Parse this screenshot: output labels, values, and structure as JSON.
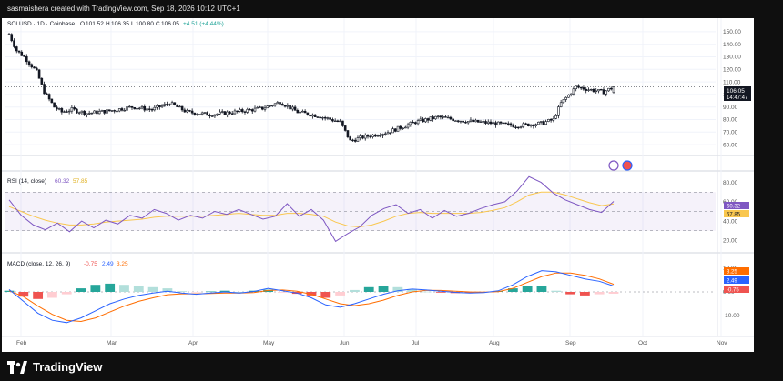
{
  "header": {
    "text": "sasmaishera created with TradingView.com, Sep 18, 2026 10:12 UTC+1"
  },
  "legend": {
    "symbol": "SOLUSD · 1D · Coinbase",
    "o_label": "O",
    "o_value": "101.52",
    "h_label": "H",
    "h_value": "106.35",
    "l_label": "L",
    "l_value": "100.80",
    "c_label": "C",
    "c_value": "106.05",
    "change": "+4.51 (+4.44%)"
  },
  "rsi_legend": {
    "label": "RSI (14, close)",
    "value1": "60.32",
    "value2": "57.85"
  },
  "macd_legend": {
    "label": "MACD (close, 12, 26, 9)",
    "value1": "-0.75",
    "value2": "2.49",
    "value3": "3.25"
  },
  "price_badge": {
    "value": "106.05",
    "countdown": "14:47:47"
  },
  "rsi_badges": {
    "rsi": "60.32",
    "ma": "57.85"
  },
  "macd_badges": {
    "signal": "3.25",
    "macd": "2.49",
    "hist": "-0.75"
  },
  "footer": {
    "brand": "TradingView"
  },
  "colors": {
    "up": "#26a69a",
    "down": "#ef5350",
    "candle": "#131722",
    "rsi": "#7e57c2",
    "rsi_ma": "#f9c74f",
    "macd": "#2962ff",
    "signal": "#ff6d00"
  },
  "chart_data": [
    {
      "type": "candlestick",
      "title": "SOLUSD · 1D · Coinbase",
      "x_tick_labels": [
        "Feb",
        "Mar",
        "Apr",
        "May",
        "Jun",
        "Jul",
        "Aug",
        "Sep",
        "Oct",
        "Nov"
      ],
      "y_tick_labels": [
        "60.00",
        "70.00",
        "80.00",
        "90.00",
        "100.00",
        "110.00",
        "120.00",
        "130.00",
        "140.00",
        "150.00"
      ],
      "ylim": [
        55,
        155
      ],
      "close_keypoints": [
        {
          "x": "Jan 20",
          "y": 148
        },
        {
          "x": "Jan 23",
          "y": 135
        },
        {
          "x": "Jan 26",
          "y": 130
        },
        {
          "x": "Jan 31",
          "y": 118
        },
        {
          "x": "Feb 3",
          "y": 102
        },
        {
          "x": "Feb 7",
          "y": 90
        },
        {
          "x": "Feb 10",
          "y": 86
        },
        {
          "x": "Feb 14",
          "y": 88
        },
        {
          "x": "Feb 20",
          "y": 85
        },
        {
          "x": "Mar 1",
          "y": 87
        },
        {
          "x": "Mar 10",
          "y": 90
        },
        {
          "x": "Mar 18",
          "y": 88
        },
        {
          "x": "Mar 25",
          "y": 93
        },
        {
          "x": "Apr 1",
          "y": 86
        },
        {
          "x": "Apr 10",
          "y": 84
        },
        {
          "x": "Apr 20",
          "y": 86
        },
        {
          "x": "May 1",
          "y": 89
        },
        {
          "x": "May 8",
          "y": 94
        },
        {
          "x": "May 15",
          "y": 86
        },
        {
          "x": "May 23",
          "y": 83
        },
        {
          "x": "Jun 1",
          "y": 78
        },
        {
          "x": "Jun 5",
          "y": 63
        },
        {
          "x": "Jun 10",
          "y": 66
        },
        {
          "x": "Jun 20",
          "y": 70
        },
        {
          "x": "Jul 1",
          "y": 78
        },
        {
          "x": "Jul 10",
          "y": 82
        },
        {
          "x": "Jul 20",
          "y": 79
        },
        {
          "x": "Aug 1",
          "y": 77
        },
        {
          "x": "Aug 10",
          "y": 75
        },
        {
          "x": "Aug 20",
          "y": 77
        },
        {
          "x": "Aug 25",
          "y": 80
        },
        {
          "x": "Aug 28",
          "y": 93
        },
        {
          "x": "Sep 3",
          "y": 106
        },
        {
          "x": "Sep 8",
          "y": 104
        },
        {
          "x": "Sep 14",
          "y": 102
        },
        {
          "x": "Sep 18",
          "y": 106.05
        }
      ],
      "last": {
        "open": 101.52,
        "high": 106.35,
        "low": 100.8,
        "close": 106.05
      }
    },
    {
      "type": "line",
      "title": "RSI (14, close)",
      "y_tick_labels": [
        "20.00",
        "40.00",
        "60.00",
        "80.00"
      ],
      "ylim": [
        10,
        90
      ],
      "bands": {
        "upper": 70,
        "lower": 30,
        "middle": 50
      },
      "series": [
        {
          "name": "RSI",
          "values": [
            62,
            46,
            36,
            31,
            38,
            29,
            40,
            33,
            41,
            37,
            46,
            43,
            52,
            48,
            41,
            46,
            43,
            50,
            47,
            52,
            47,
            42,
            45,
            58,
            45,
            52,
            41,
            19,
            27,
            34,
            46,
            53,
            57,
            48,
            52,
            43,
            51,
            45,
            48,
            53,
            57,
            60,
            71,
            86,
            80,
            69,
            62,
            57,
            52,
            49,
            60.32
          ]
        },
        {
          "name": "MA",
          "values": [
            55,
            50,
            45,
            41,
            38,
            36,
            36,
            37,
            39,
            40,
            41,
            42,
            44,
            45,
            45,
            45,
            45,
            46,
            47,
            48,
            47,
            46,
            46,
            48,
            48,
            47,
            45,
            39,
            35,
            34,
            36,
            40,
            45,
            48,
            49,
            48,
            48,
            48,
            48,
            49,
            51,
            54,
            60,
            67,
            70,
            70,
            67,
            63,
            59,
            56,
            57.85
          ]
        }
      ]
    },
    {
      "type": "line",
      "title": "MACD (close, 12, 26, 9)",
      "y_tick_labels": [
        "-10.00",
        "0.00",
        "10.00"
      ],
      "ylim": [
        -15,
        15
      ],
      "series": [
        {
          "name": "MACD",
          "values": [
            1,
            -4,
            -9,
            -12,
            -13,
            -11,
            -8,
            -5,
            -3,
            -1.5,
            -0.5,
            0.3,
            -0.5,
            -1,
            -0.5,
            0,
            -0.5,
            0.2,
            1.5,
            0.5,
            -0.5,
            -2.5,
            -5.5,
            -6.5,
            -5,
            -3,
            -1,
            0.5,
            1.2,
            0.8,
            0.3,
            -0.2,
            -0.5,
            -0.3,
            0.5,
            3,
            6.5,
            9,
            8.5,
            7,
            5.5,
            4.5,
            2.49
          ]
        },
        {
          "name": "Signal",
          "values": [
            0.5,
            -2,
            -6,
            -9.5,
            -12,
            -12.5,
            -11,
            -8.5,
            -6,
            -4,
            -2.5,
            -1.2,
            -0.8,
            -0.8,
            -0.7,
            -0.5,
            -0.5,
            -0.3,
            0.6,
            0.8,
            0.3,
            -1,
            -3,
            -5,
            -5.8,
            -5,
            -3.5,
            -1.5,
            0,
            0.7,
            0.6,
            0.3,
            0,
            -0.1,
            0.1,
            1.5,
            4,
            6.5,
            8,
            8,
            7,
            5.5,
            3.25
          ]
        },
        {
          "name": "Histogram",
          "values": [
            0.5,
            -2,
            -3,
            -2.5,
            -1,
            1.5,
            3,
            3.5,
            3,
            2.5,
            2,
            1.5,
            0.3,
            -0.2,
            0.2,
            0.5,
            0,
            0.5,
            0.9,
            -0.3,
            -0.8,
            -1.5,
            -2.5,
            -1.5,
            0.8,
            2,
            2.5,
            2,
            1.2,
            0.1,
            -0.3,
            -0.5,
            -0.5,
            -0.2,
            0.4,
            1.5,
            2.5,
            2.5,
            0.5,
            -1,
            -1.5,
            -1,
            -0.75
          ]
        }
      ]
    }
  ]
}
